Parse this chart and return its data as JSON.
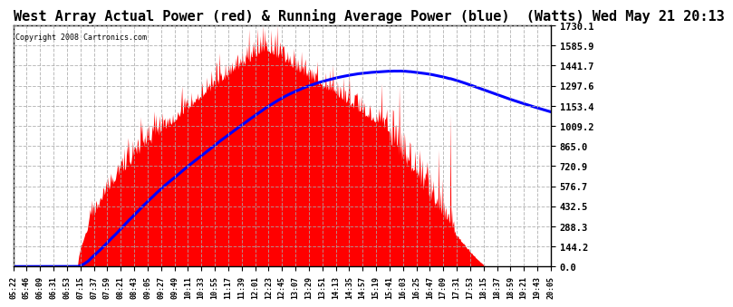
{
  "title": "West Array Actual Power (red) & Running Average Power (blue)  (Watts) Wed May 21 20:13",
  "copyright": "Copyright 2008 Cartronics.com",
  "ylim": [
    0.0,
    1730.1
  ],
  "yticks": [
    0.0,
    144.2,
    288.3,
    432.5,
    576.7,
    720.9,
    865.0,
    1009.2,
    1153.4,
    1297.6,
    1441.7,
    1585.9,
    1730.1
  ],
  "background_color": "#ffffff",
  "plot_bg_color": "#ffffff",
  "actual_color": "red",
  "avg_color": "blue",
  "title_fontsize": 11,
  "grid_color": "#aaaaaa",
  "x_labels": [
    "05:22",
    "05:46",
    "06:09",
    "06:31",
    "06:53",
    "07:15",
    "07:37",
    "07:59",
    "08:21",
    "08:43",
    "09:05",
    "09:27",
    "09:49",
    "10:11",
    "10:33",
    "10:55",
    "11:17",
    "11:39",
    "12:01",
    "12:23",
    "12:45",
    "13:07",
    "13:29",
    "13:51",
    "14:13",
    "14:35",
    "14:57",
    "15:19",
    "15:41",
    "16:03",
    "16:25",
    "16:47",
    "17:09",
    "17:31",
    "17:53",
    "18:15",
    "18:37",
    "18:59",
    "19:21",
    "19:43",
    "20:05"
  ],
  "n_points": 820
}
